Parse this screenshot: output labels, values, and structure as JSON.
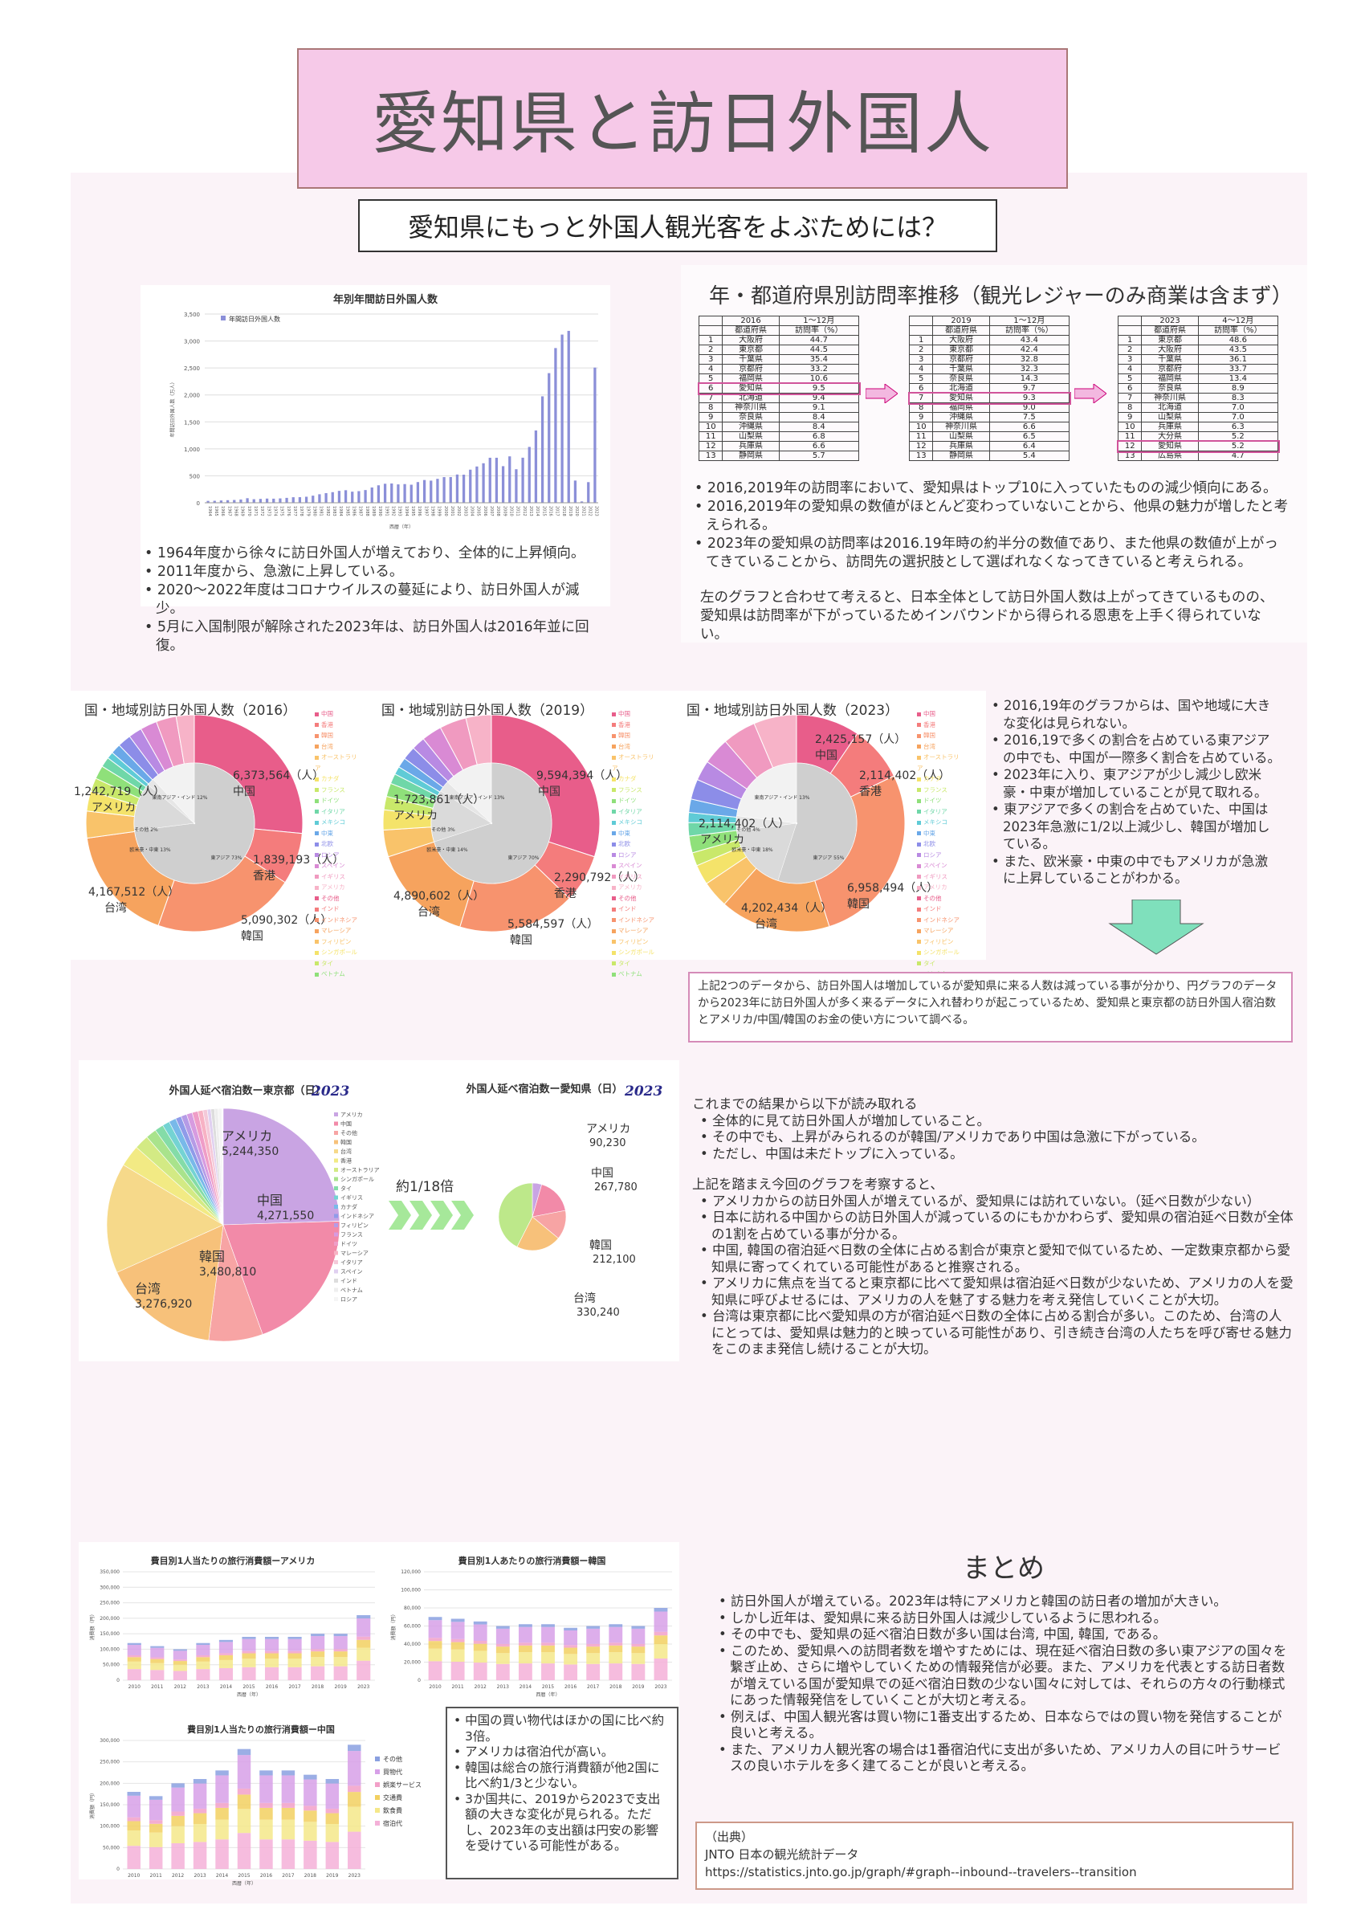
{
  "title": "愛知県と訪日外国人",
  "subtitle": "愛知県にもっと外国人観光客をよぶためには？",
  "section1": {
    "chart_title": "年別年間訪日外国人数",
    "legend": "年間訪日外国人数",
    "ylabel": "年間訪日外国人数（万人）",
    "xlabel": "西暦（年）",
    "bullets": [
      "1964年度から徐々に訪日外国人が増えており、全体的に上昇傾向。",
      "2011年度から、急激に上昇している。",
      "2020～2022年度はコロナウイルスの蔓延により、訪日外国人が減少。",
      "5月に入国制限が解除された2023年は、訪日外国人は2016年並に回復。"
    ]
  },
  "chart_data": [
    {
      "type": "bar",
      "title": "年別年間訪日外国人数",
      "ylabel": "年間訪日外国人数（万人）",
      "xlabel": "西暦（年）",
      "ylim": [
        0,
        3500
      ],
      "x": [
        1964,
        1965,
        1966,
        1967,
        1968,
        1969,
        1970,
        1971,
        1972,
        1973,
        1974,
        1975,
        1976,
        1977,
        1978,
        1979,
        1980,
        1981,
        1982,
        1983,
        1984,
        1985,
        1986,
        1987,
        1988,
        1989,
        1990,
        1991,
        1992,
        1993,
        1994,
        1995,
        1996,
        1997,
        1998,
        1999,
        2000,
        2001,
        2002,
        2003,
        2004,
        2005,
        2006,
        2007,
        2008,
        2009,
        2010,
        2011,
        2012,
        2013,
        2014,
        2015,
        2016,
        2017,
        2018,
        2019,
        2020,
        2021,
        2022,
        2023
      ],
      "values": [
        35,
        37,
        43,
        48,
        52,
        61,
        85,
        66,
        72,
        78,
        76,
        81,
        91,
        103,
        104,
        112,
        132,
        158,
        179,
        197,
        221,
        233,
        206,
        216,
        236,
        284,
        324,
        353,
        358,
        341,
        347,
        335,
        384,
        422,
        411,
        444,
        476,
        477,
        524,
        521,
        614,
        673,
        733,
        835,
        835,
        679,
        861,
        622,
        836,
        1036,
        1341,
        1974,
        2404,
        2869,
        3119,
        3188,
        412,
        25,
        383,
        2507
      ]
    },
    {
      "type": "pie",
      "title": "国・地域別訪日外国人数（2016）"
    },
    {
      "type": "pie",
      "title": "国・地域別訪日外国人数（2019）"
    },
    {
      "type": "pie",
      "title": "国・地域別訪日外国人数（2023）"
    },
    {
      "type": "pie",
      "title": "外国人延べ宿泊数―東京都（日）"
    },
    {
      "type": "pie",
      "title": "外国人延べ宿泊数―愛知県（日）"
    },
    {
      "type": "bar",
      "title": "費目別1人当たりの旅行消費額―アメリカ"
    },
    {
      "type": "bar",
      "title": "費目別1人あたりの旅行消費額―韓国"
    },
    {
      "type": "bar",
      "title": "費目別1人当たりの旅行消費額―中国"
    }
  ],
  "section2": {
    "heading": "年・都道府県別訪問率推移（観光レジャーのみ商業は含まず）",
    "tables": [
      {
        "year": "2016",
        "period": "1～12月",
        "head": [
          "都道府県",
          "訪問率（%）"
        ],
        "rows": [
          [
            "1",
            "大阪府",
            "44.7"
          ],
          [
            "2",
            "東京都",
            "44.5"
          ],
          [
            "3",
            "千葉県",
            "35.4"
          ],
          [
            "4",
            "京都府",
            "33.2"
          ],
          [
            "5",
            "福岡県",
            "10.6"
          ],
          [
            "6",
            "愛知県",
            "9.5"
          ],
          [
            "7",
            "北海道",
            "9.4"
          ],
          [
            "8",
            "神奈川県",
            "9.1"
          ],
          [
            "9",
            "奈良県",
            "8.4"
          ],
          [
            "10",
            "沖縄県",
            "8.4"
          ],
          [
            "11",
            "山梨県",
            "6.8"
          ],
          [
            "12",
            "兵庫県",
            "6.6"
          ],
          [
            "13",
            "静岡県",
            "5.7"
          ]
        ]
      },
      {
        "year": "2019",
        "period": "1～12月",
        "head": [
          "都道府県",
          "訪問率（%）"
        ],
        "rows": [
          [
            "1",
            "大阪府",
            "43.4"
          ],
          [
            "2",
            "東京都",
            "42.4"
          ],
          [
            "3",
            "京都府",
            "32.8"
          ],
          [
            "4",
            "千葉県",
            "32.3"
          ],
          [
            "5",
            "奈良県",
            "14.3"
          ],
          [
            "6",
            "北海道",
            "9.7"
          ],
          [
            "7",
            "愛知県",
            "9.3"
          ],
          [
            "8",
            "福岡県",
            "9.0"
          ],
          [
            "9",
            "沖縄県",
            "7.5"
          ],
          [
            "10",
            "神奈川県",
            "6.6"
          ],
          [
            "11",
            "山梨県",
            "6.5"
          ],
          [
            "12",
            "兵庫県",
            "6.4"
          ],
          [
            "13",
            "静岡県",
            "5.4"
          ]
        ]
      },
      {
        "year": "2023",
        "period": "4～12月",
        "head": [
          "都道府県",
          "訪問率（%）"
        ],
        "rows": [
          [
            "1",
            "東京都",
            "48.6"
          ],
          [
            "2",
            "大阪府",
            "43.5"
          ],
          [
            "3",
            "千葉県",
            "36.1"
          ],
          [
            "4",
            "京都府",
            "33.7"
          ],
          [
            "5",
            "福岡県",
            "13.4"
          ],
          [
            "6",
            "奈良県",
            "8.9"
          ],
          [
            "7",
            "神奈川県",
            "8.3"
          ],
          [
            "8",
            "北海道",
            "7.0"
          ],
          [
            "9",
            "山梨県",
            "7.0"
          ],
          [
            "10",
            "兵庫県",
            "6.3"
          ],
          [
            "11",
            "大分県",
            "5.2"
          ],
          [
            "12",
            "愛知県",
            "5.2"
          ],
          [
            "13",
            "広島県",
            "4.7"
          ]
        ]
      }
    ],
    "bullets": [
      "2016,2019年の訪問率において、愛知県はトップ10に入っていたものの減少傾向にある。",
      "2016,2019年の愛知県の数値がほとんど変わっていないことから、他県の魅力が増したと考えられる。",
      "2023年の愛知県の訪問率は2016.19年時の約半分の数値であり、また他県の数値が上がってきていることから、訪問先の選択肢として選ばれなくなってきていると考えられる。"
    ],
    "paragraph": "左のグラフと合わせて考えると、日本全体として訪日外国人数は上がってきているものの、愛知県は訪問率が下がっているためインバウンドから得られる恩恵を上手く得られていない。"
  },
  "section3": {
    "pies": [
      {
        "title": "国・地域別訪日外国人数（2016）",
        "labels": [
          {
            "t": "6,373,564（人）",
            "s": "中国"
          },
          {
            "t": "1,839,193（人）",
            "s": "香港"
          },
          {
            "t": "5,090,302（人）",
            "s": "韓国"
          },
          {
            "t": "4,167,512（人）",
            "s": "台湾"
          },
          {
            "t": "1,242,719（人）",
            "s": "アメリカ"
          }
        ],
        "inner": [
          "東アジア 73%",
          "欧米豪・中東 13%",
          "その他 2%",
          "東南アジア・インド 12%"
        ]
      },
      {
        "title": "国・地域別訪日外国人数（2019）",
        "labels": [
          {
            "t": "9,594,394（人）",
            "s": "中国"
          },
          {
            "t": "2,290,792（人）",
            "s": "香港"
          },
          {
            "t": "5,584,597（人）",
            "s": "韓国"
          },
          {
            "t": "4,890,602（人）",
            "s": "台湾"
          },
          {
            "t": "1,723,861（人）",
            "s": "アメリカ"
          }
        ],
        "inner": [
          "東アジア 70%",
          "欧米豪・中東 14%",
          "その他 3%",
          "東南アジア・インド 13%"
        ]
      },
      {
        "title": "国・地域別訪日外国人数（2023）",
        "labels": [
          {
            "t": "2,425,157（人）",
            "s": "中国"
          },
          {
            "t": "2,114,402（人）",
            "s": "香港"
          },
          {
            "t": "6,958,494（人）",
            "s": "韓国"
          },
          {
            "t": "4,202,434（人）",
            "s": "台湾"
          },
          {
            "t": "2,114,402（人）",
            "s": "アメリカ"
          }
        ],
        "inner": [
          "東アジア 55%",
          "欧米豪・中東 18%",
          "その他 4%",
          "東南アジア・インド 13%"
        ]
      }
    ],
    "legend": [
      "中国",
      "香港",
      "韓国",
      "台湾",
      "オーストラリア",
      "カナダ",
      "フランス",
      "ドイツ",
      "イタリア",
      "メキシコ",
      "中東",
      "北欧",
      "ロシア",
      "スペイン",
      "イギリス",
      "アメリカ",
      "その他",
      "インド",
      "インドネシア",
      "マレーシア",
      "フィリピン",
      "シンガポール",
      "タイ",
      "ベトナム"
    ],
    "bullets": [
      "2016,19年のグラフからは、国や地域に大きな変化は見られない。",
      "2016,19で多くの割合を占めている東アジアの中でも、中国が一際多く割合を占めている。",
      "2023年に入り、東アジアが少し減少し欧米豪・中東が増加していることが見て取れる。",
      "東アジアで多くの割合を占めていた、中国は2023年急激に1/2以上減少し、韓国が増加している。",
      "また、欧米豪・中東の中でもアメリカが急激に上昇していることがわかる。"
    ],
    "note": "上記2つのデータから、訪日外国人は増加しているが愛知県に来る人数は減っている事が分かり、円グラフのデータから2023年に訪日外国人が多く来るデータに入れ替わりが起こっているため、愛知県と東京都の訪日外国人宿泊数とアメリカ/中国/韓国のお金の使い方について調べる。"
  },
  "section4": {
    "tokyo_title": "外国人延べ宿泊数ー東京都（日）",
    "aichi_title": "外国人延べ宿泊数ー愛知県（日）",
    "year_mark": "2023",
    "ratio": "約1/18倍",
    "tokyo_labels": [
      {
        "n": "アメリカ",
        "v": "5,244,350"
      },
      {
        "n": "中国",
        "v": "4,271,550"
      },
      {
        "n": "韓国",
        "v": "3,480,810"
      },
      {
        "n": "台湾",
        "v": "3,276,920"
      }
    ],
    "aichi_labels": [
      {
        "n": "アメリカ",
        "v": "90,230"
      },
      {
        "n": "中国",
        "v": "267,780"
      },
      {
        "n": "韓国",
        "v": "212,100"
      },
      {
        "n": "台湾",
        "v": "330,240"
      }
    ],
    "legend": [
      "アメリカ",
      "中国",
      "その他",
      "韓国",
      "台湾",
      "香港",
      "オーストラリア",
      "シンガポール",
      "タイ",
      "イギリス",
      "カナダ",
      "インドネシア",
      "フィリピン",
      "フランス",
      "ドイツ",
      "マレーシア",
      "イタリア",
      "スペイン",
      "インド",
      "ベトナム",
      "ロシア"
    ],
    "intro": "これまでの結果から以下が読み取れる",
    "bullets1": [
      "全体的に見て訪日外国人が増加していること。",
      "その中でも、上昇がみられるのが韓国/アメリカであり中国は急激に下がっている。",
      "ただし、中国は未だトップに入っている。"
    ],
    "intro2": "上記を踏まえ今回のグラフを考察すると、",
    "bullets2": [
      "アメリカからの訪日外国人が増えているが、愛知県には訪れていない。（延べ日数が少ない）",
      "日本に訪れる中国からの訪日外国人が減っているのにもかかわらず、愛知県の宿泊延べ日数が全体の1割を占めている事が分かる。",
      "中国, 韓国の宿泊延べ日数の全体に占める割合が東京と愛知で似ているため、一定数東京都から愛知県に寄ってくれている可能性があると推察される。",
      "アメリカに焦点を当てると東京都に比べて愛知県は宿泊延べ日数が少ないため、アメリカの人を愛知県に呼びよせるには、アメリカの人を魅了する魅力を考え発信していくことが大切。",
      "台湾は東京都に比べ愛知県の方が宿泊延べ日数の全体に占める割合が多い。このため、台湾の人にとっては、愛知県は魅力的と映っている可能性があり、引き続き台湾の人たちを呼び寄せる魅力をこのまま発信し続けることが大切。"
    ]
  },
  "section5": {
    "chart_us": "費目別1人当たりの旅行消費額ーアメリカ",
    "chart_kr": "費目別1人あたりの旅行消費額ー韓国",
    "chart_cn": "費目別1人当たりの旅行消費額ー中国",
    "legend": [
      "その他",
      "買物代",
      "娯楽サービス",
      "交通費",
      "飲食費",
      "宿泊代"
    ],
    "years": [
      "2010",
      "2011",
      "2012",
      "2013",
      "2014",
      "2015",
      "2016",
      "2017",
      "2018",
      "2019",
      "2023"
    ],
    "xlabel": "西暦（年）",
    "ylabel": "消費額（円）",
    "note_bullets": [
      "中国の買い物代はほかの国に比べ約3倍。",
      "アメリカは宿泊代が高い。",
      "韓国は総合の旅行消費額が他2国に比べ約1/3と少ない。",
      "3か国共に、2019から2023で支出額の大きな変化が見られる。ただし、2023年の支出額は円安の影響を受けている可能性がある。"
    ],
    "summary_title": "まとめ",
    "summary": [
      "訪日外国人が増えている。2023年は特にアメリカと韓国の訪日者の増加が大きい。",
      "しかし近年は、愛知県に来る訪日外国人は減少しているように思われる。",
      "その中でも、愛知県の延べ宿泊日数が多い国は台湾, 中国, 韓国, である。",
      "このため、愛知県への訪問者数を増やすためには、現在延べ宿泊日数の多い東アジアの国々を繋ぎ止め、さらに増やしていくための情報発信が必要。また、アメリカを代表とする訪日者数が増えている国が愛知県での延べ宿泊日数の少ない国々に対しては、それらの方々の行動様式にあった情報発信をしていくことが大切と考える。",
      "例えば、中国人観光客は買い物に1番支出するため、日本ならではの買い物を発信することが良いと考える。",
      "また、アメリカ人観光客の場合は1番宿泊代に支出が多いため、アメリカ人の目に叶うサービスの良いホテルを多く建てることが良いと考える。"
    ],
    "source_title": "（出典）",
    "source_name": "JNTO 日本の観光統計データ",
    "source_url": "https://statistics.jnto.go.jp/graph/#graph--inbound--travelers--transition"
  }
}
